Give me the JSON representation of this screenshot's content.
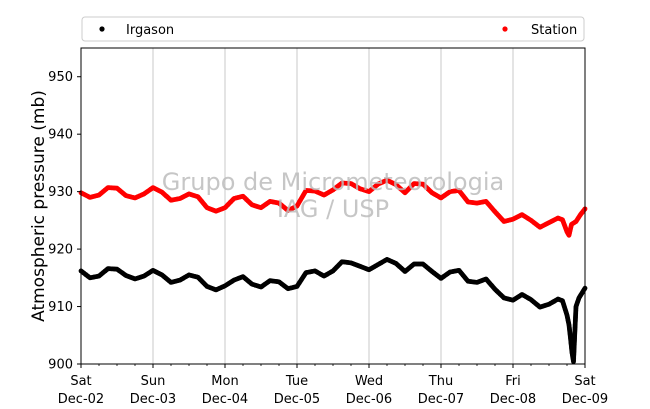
{
  "chart_data": {
    "type": "scatter",
    "ylabel": "Atmospheric pressure (mb)",
    "ylim": [
      900,
      955
    ],
    "yticks": [
      900,
      910,
      920,
      930,
      940,
      950
    ],
    "ytick_labels": [
      "900",
      "910",
      "920",
      "930",
      "940",
      "950"
    ],
    "xlim": [
      "2018-12-02T00:00",
      "2018-12-09T00:00"
    ],
    "xticks": [
      {
        "x": "2018-12-02T00:00",
        "day": "Sat",
        "date": "Dec-02"
      },
      {
        "x": "2018-12-03T00:00",
        "day": "Sun",
        "date": "Dec-03"
      },
      {
        "x": "2018-12-04T00:00",
        "day": "Mon",
        "date": "Dec-04"
      },
      {
        "x": "2018-12-05T00:00",
        "day": "Tue",
        "date": "Dec-05"
      },
      {
        "x": "2018-12-06T00:00",
        "day": "Wed",
        "date": "Dec-06"
      },
      {
        "x": "2018-12-07T00:00",
        "day": "Thu",
        "date": "Dec-07"
      },
      {
        "x": "2018-12-08T00:00",
        "day": "Fri",
        "date": "Dec-08"
      },
      {
        "x": "2018-12-09T00:00",
        "day": "Sat",
        "date": "Dec-09"
      }
    ],
    "grid": "vertical",
    "legend": {
      "placement": "top",
      "entries": [
        "Irgason",
        "Station"
      ]
    },
    "watermark": [
      "Grupo de Micrometeorologia",
      "IAG / USP"
    ],
    "series": [
      {
        "name": "Irgason",
        "color": "#000000",
        "points": [
          [
            "2018-12-02T00:00",
            916.2
          ],
          [
            "2018-12-02T03:00",
            915.0
          ],
          [
            "2018-12-02T06:00",
            915.3
          ],
          [
            "2018-12-02T09:00",
            916.6
          ],
          [
            "2018-12-02T12:00",
            916.5
          ],
          [
            "2018-12-02T15:00",
            915.4
          ],
          [
            "2018-12-02T18:00",
            914.8
          ],
          [
            "2018-12-02T21:00",
            915.3
          ],
          [
            "2018-12-03T00:00",
            916.3
          ],
          [
            "2018-12-03T03:00",
            915.5
          ],
          [
            "2018-12-03T06:00",
            914.2
          ],
          [
            "2018-12-03T09:00",
            914.6
          ],
          [
            "2018-12-03T12:00",
            915.5
          ],
          [
            "2018-12-03T15:00",
            915.1
          ],
          [
            "2018-12-03T18:00",
            913.5
          ],
          [
            "2018-12-03T21:00",
            912.9
          ],
          [
            "2018-12-04T00:00",
            913.6
          ],
          [
            "2018-12-04T03:00",
            914.6
          ],
          [
            "2018-12-04T06:00",
            915.2
          ],
          [
            "2018-12-04T09:00",
            913.9
          ],
          [
            "2018-12-04T12:00",
            913.4
          ],
          [
            "2018-12-04T15:00",
            914.5
          ],
          [
            "2018-12-04T18:00",
            914.3
          ],
          [
            "2018-12-04T21:00",
            913.1
          ],
          [
            "2018-12-05T00:00",
            913.5
          ],
          [
            "2018-12-05T03:00",
            915.9
          ],
          [
            "2018-12-05T06:00",
            916.2
          ],
          [
            "2018-12-05T09:00",
            915.3
          ],
          [
            "2018-12-05T12:00",
            916.2
          ],
          [
            "2018-12-05T15:00",
            917.8
          ],
          [
            "2018-12-05T18:00",
            917.6
          ],
          [
            "2018-12-05T21:00",
            917.0
          ],
          [
            "2018-12-06T00:00",
            916.4
          ],
          [
            "2018-12-06T03:00",
            917.3
          ],
          [
            "2018-12-06T06:00",
            918.2
          ],
          [
            "2018-12-06T09:00",
            917.5
          ],
          [
            "2018-12-06T12:00",
            916.1
          ],
          [
            "2018-12-06T15:00",
            917.4
          ],
          [
            "2018-12-06T18:00",
            917.4
          ],
          [
            "2018-12-06T21:00",
            916.1
          ],
          [
            "2018-12-07T00:00",
            914.9
          ],
          [
            "2018-12-07T03:00",
            916.0
          ],
          [
            "2018-12-07T06:00",
            916.3
          ],
          [
            "2018-12-07T09:00",
            914.4
          ],
          [
            "2018-12-07T12:00",
            914.2
          ],
          [
            "2018-12-07T15:00",
            914.8
          ],
          [
            "2018-12-07T18:00",
            913.0
          ],
          [
            "2018-12-07T21:00",
            911.5
          ],
          [
            "2018-12-08T00:00",
            911.1
          ],
          [
            "2018-12-08T03:00",
            912.1
          ],
          [
            "2018-12-08T06:00",
            911.2
          ],
          [
            "2018-12-08T09:00",
            909.9
          ],
          [
            "2018-12-08T12:00",
            910.4
          ],
          [
            "2018-12-08T15:00",
            911.3
          ],
          [
            "2018-12-08T16:30",
            911.0
          ],
          [
            "2018-12-08T18:00",
            908.5
          ],
          [
            "2018-12-08T18:40",
            906.8
          ],
          [
            "2018-12-08T19:10",
            904.5
          ],
          [
            "2018-12-08T19:40",
            902.0
          ],
          [
            "2018-12-08T20:10",
            900.4
          ],
          [
            "2018-12-08T21:00",
            910.0
          ],
          [
            "2018-12-08T22:00",
            911.5
          ],
          [
            "2018-12-09T00:00",
            913.2
          ]
        ]
      },
      {
        "name": "Station",
        "color": "#ff0000",
        "points": [
          [
            "2018-12-02T00:00",
            929.8
          ],
          [
            "2018-12-02T03:00",
            929.0
          ],
          [
            "2018-12-02T06:00",
            929.4
          ],
          [
            "2018-12-02T09:00",
            930.7
          ],
          [
            "2018-12-02T12:00",
            930.6
          ],
          [
            "2018-12-02T15:00",
            929.3
          ],
          [
            "2018-12-02T18:00",
            928.9
          ],
          [
            "2018-12-02T21:00",
            929.6
          ],
          [
            "2018-12-03T00:00",
            930.7
          ],
          [
            "2018-12-03T03:00",
            929.9
          ],
          [
            "2018-12-03T06:00",
            928.5
          ],
          [
            "2018-12-03T09:00",
            928.8
          ],
          [
            "2018-12-03T12:00",
            929.6
          ],
          [
            "2018-12-03T15:00",
            929.1
          ],
          [
            "2018-12-03T18:00",
            927.2
          ],
          [
            "2018-12-03T21:00",
            926.6
          ],
          [
            "2018-12-04T00:00",
            927.2
          ],
          [
            "2018-12-04T03:00",
            928.8
          ],
          [
            "2018-12-04T06:00",
            929.2
          ],
          [
            "2018-12-04T09:00",
            927.7
          ],
          [
            "2018-12-04T12:00",
            927.2
          ],
          [
            "2018-12-04T15:00",
            928.3
          ],
          [
            "2018-12-04T18:00",
            928.0
          ],
          [
            "2018-12-04T21:00",
            926.7
          ],
          [
            "2018-12-05T00:00",
            927.5
          ],
          [
            "2018-12-05T03:00",
            930.2
          ],
          [
            "2018-12-05T06:00",
            930.1
          ],
          [
            "2018-12-05T09:00",
            929.4
          ],
          [
            "2018-12-05T12:00",
            930.3
          ],
          [
            "2018-12-05T15:00",
            931.5
          ],
          [
            "2018-12-05T18:00",
            931.4
          ],
          [
            "2018-12-05T21:00",
            930.5
          ],
          [
            "2018-12-06T00:00",
            930.0
          ],
          [
            "2018-12-06T03:00",
            931.3
          ],
          [
            "2018-12-06T06:00",
            932.0
          ],
          [
            "2018-12-06T09:00",
            931.2
          ],
          [
            "2018-12-06T12:00",
            929.8
          ],
          [
            "2018-12-06T15:00",
            931.4
          ],
          [
            "2018-12-06T18:00",
            931.3
          ],
          [
            "2018-12-06T21:00",
            929.8
          ],
          [
            "2018-12-07T00:00",
            928.9
          ],
          [
            "2018-12-07T03:00",
            930.0
          ],
          [
            "2018-12-07T06:00",
            930.2
          ],
          [
            "2018-12-07T09:00",
            928.2
          ],
          [
            "2018-12-07T12:00",
            928.0
          ],
          [
            "2018-12-07T15:00",
            928.3
          ],
          [
            "2018-12-07T18:00",
            926.5
          ],
          [
            "2018-12-07T21:00",
            924.8
          ],
          [
            "2018-12-08T00:00",
            925.2
          ],
          [
            "2018-12-08T03:00",
            926.0
          ],
          [
            "2018-12-08T06:00",
            925.0
          ],
          [
            "2018-12-08T09:00",
            923.8
          ],
          [
            "2018-12-08T12:00",
            924.6
          ],
          [
            "2018-12-08T15:00",
            925.4
          ],
          [
            "2018-12-08T16:30",
            925.1
          ],
          [
            "2018-12-08T18:00",
            923.0
          ],
          [
            "2018-12-08T18:40",
            922.4
          ],
          [
            "2018-12-08T19:30",
            924.3
          ],
          [
            "2018-12-08T21:00",
            924.8
          ],
          [
            "2018-12-08T22:30",
            926.0
          ],
          [
            "2018-12-09T00:00",
            927.0
          ]
        ]
      }
    ]
  }
}
